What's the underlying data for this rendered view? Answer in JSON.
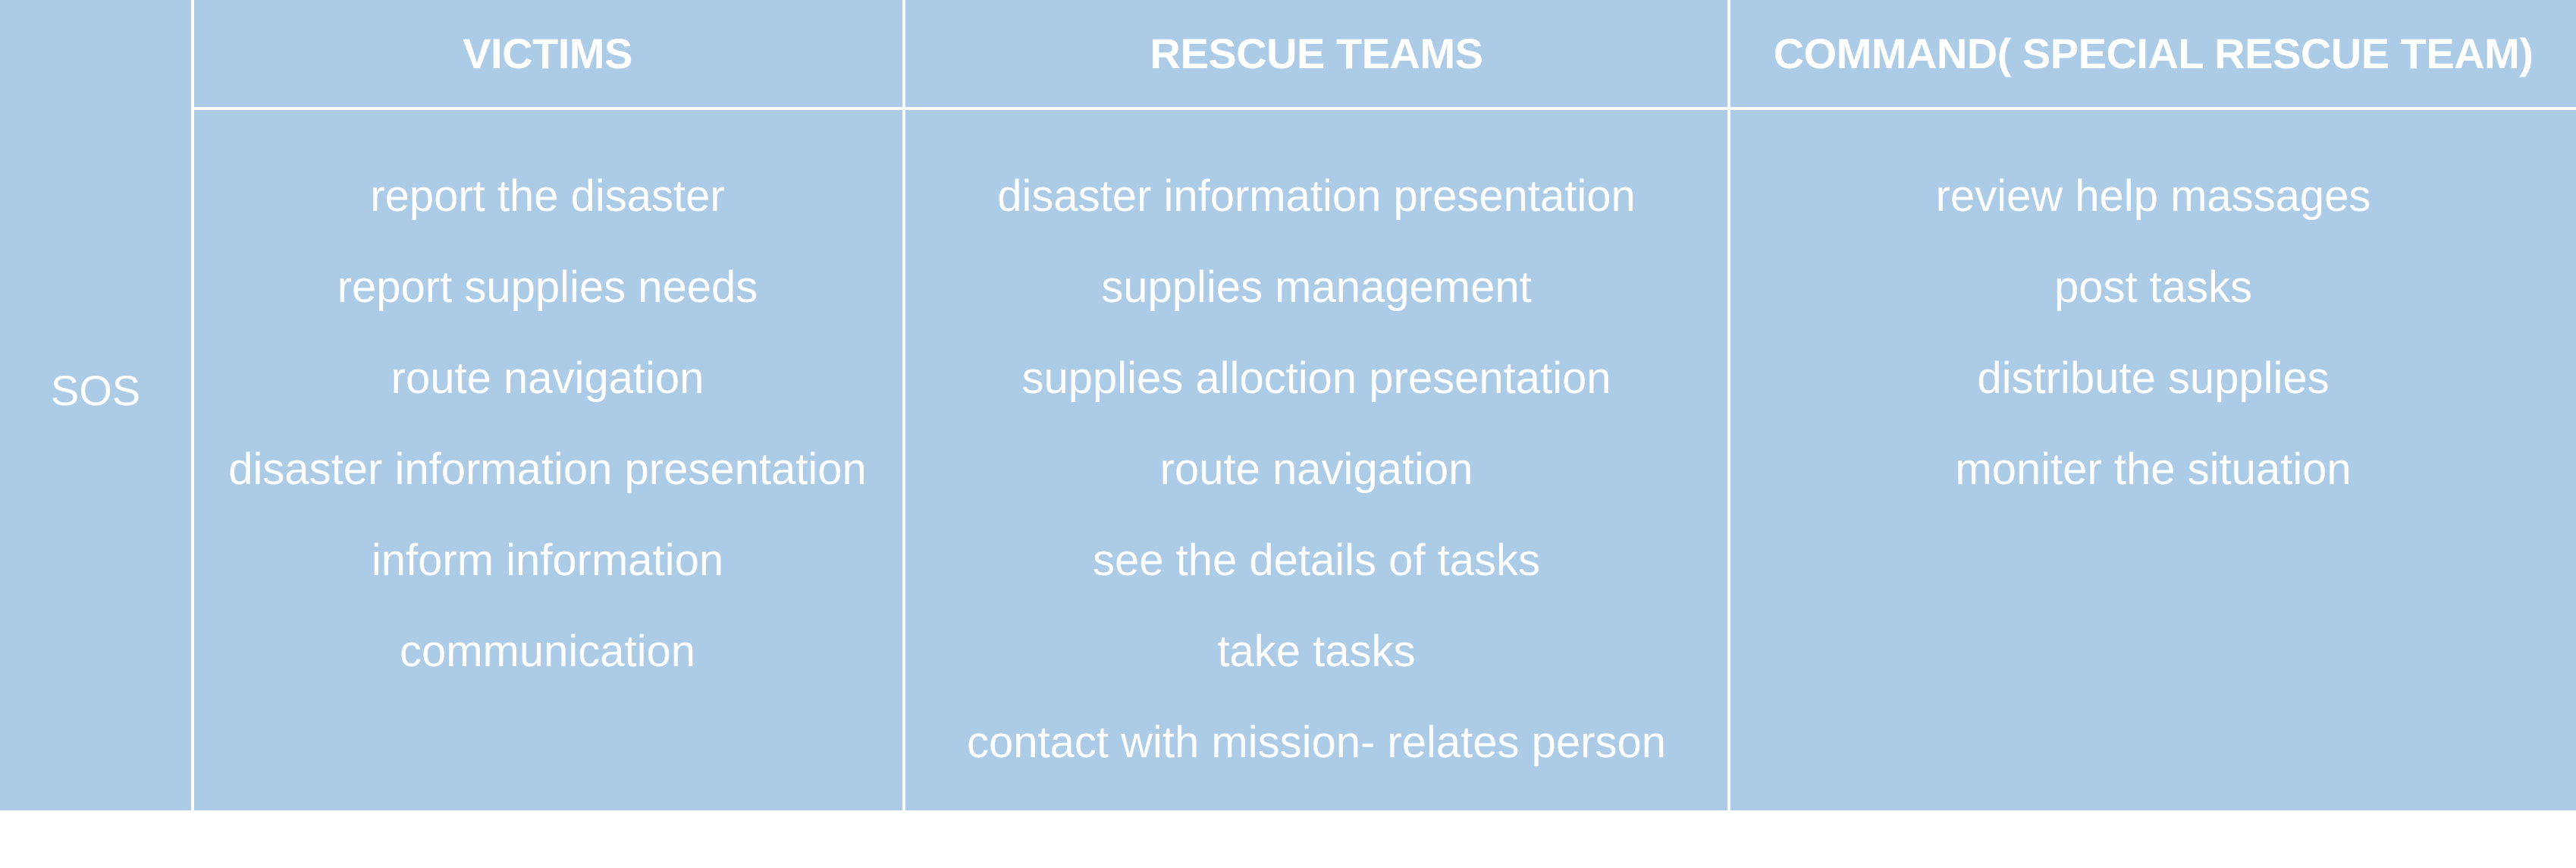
{
  "row_label": "SOS",
  "columns": [
    {
      "header": "VICTIMS",
      "items": [
        "report the disaster",
        "report supplies needs",
        "route navigation",
        "disaster information presentation",
        "inform information",
        "communication"
      ]
    },
    {
      "header": "RESCUE TEAMS",
      "items": [
        "disaster information presentation",
        "supplies management",
        "supplies alloction presentation",
        "route navigation",
        "see the details of tasks",
        "take tasks",
        "contact with mission- relates person"
      ]
    },
    {
      "header": "COMMAND( SPECIAL RESCUE TEAM)",
      "items": [
        "review help massages",
        "post tasks",
        "distribute supplies",
        "moniter the situation"
      ]
    }
  ],
  "colors": {
    "background": "#abcbe6",
    "text": "#ffffff",
    "lines": "#ffffff"
  }
}
